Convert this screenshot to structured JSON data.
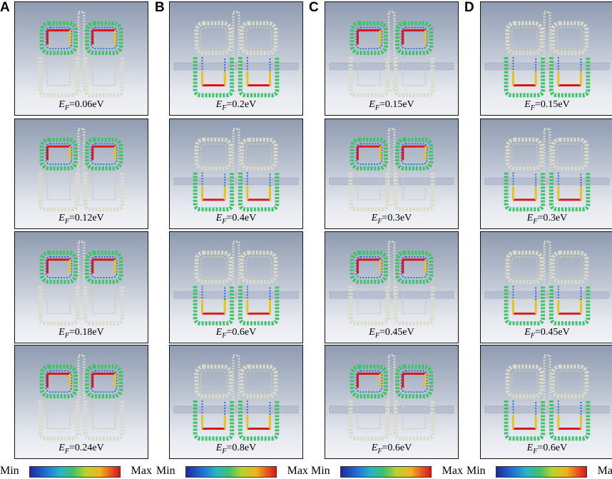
{
  "columns": [
    {
      "letter": "A",
      "panels": [
        {
          "ef": "0.06eV",
          "hot": "top",
          "strip": false
        },
        {
          "ef": "0.12eV",
          "hot": "top",
          "strip": false
        },
        {
          "ef": "0.18eV",
          "hot": "top",
          "strip": false
        },
        {
          "ef": "0.24eV",
          "hot": "top",
          "strip": false
        }
      ]
    },
    {
      "letter": "B",
      "panels": [
        {
          "ef": "0.2eV",
          "hot": "bottom",
          "strip": true
        },
        {
          "ef": "0.4eV",
          "hot": "bottom",
          "strip": true
        },
        {
          "ef": "0.6eV",
          "hot": "bottom",
          "strip": true
        },
        {
          "ef": "0.8eV",
          "hot": "bottom",
          "strip": true
        }
      ]
    },
    {
      "letter": "C",
      "panels": [
        {
          "ef": "0.15eV",
          "hot": "top",
          "strip": true
        },
        {
          "ef": "0.3eV",
          "hot": "top",
          "strip": true
        },
        {
          "ef": "0.45eV",
          "hot": "top",
          "strip": true
        },
        {
          "ef": "0.6eV",
          "hot": "top",
          "strip": true
        }
      ]
    },
    {
      "letter": "D",
      "panels": [
        {
          "ef": "0.15eV",
          "hot": "bottom",
          "strip": true
        },
        {
          "ef": "0.3eV",
          "hot": "bottom",
          "strip": true
        },
        {
          "ef": "0.45eV",
          "hot": "bottom",
          "strip": true
        },
        {
          "ef": "0.6eV",
          "hot": "bottom",
          "strip": true
        }
      ]
    }
  ],
  "label_prefix": "E",
  "label_sub": "F",
  "label_eq": "=",
  "legend": {
    "min": "Min",
    "max": "Max"
  },
  "colors": {
    "cold": "#2a6fd8",
    "mid": "#3fc26a",
    "warm": "#e8c21e",
    "hot": "#d8171b",
    "pale": "#d9dcc8"
  }
}
